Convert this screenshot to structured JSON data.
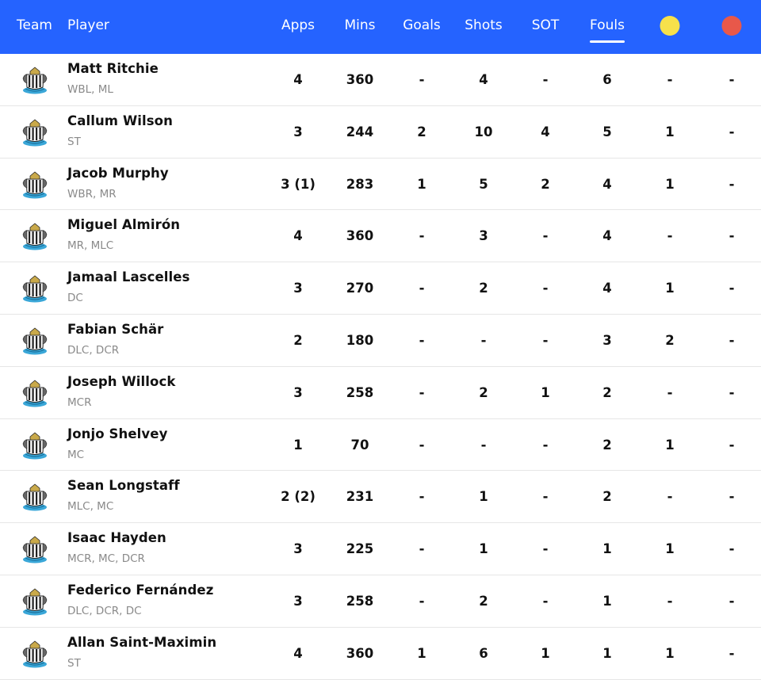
{
  "header": {
    "team": "Team",
    "player": "Player",
    "apps": "Apps",
    "mins": "Mins",
    "goals": "Goals",
    "shots": "Shots",
    "sot": "SOT",
    "fouls": "Fouls",
    "active_sort": "Fouls",
    "yellow_color": "#f7e14b",
    "red_color": "#e8584a"
  },
  "colors": {
    "header_bg": "#2563ff"
  },
  "rows": [
    {
      "name": "Matt Ritchie",
      "pos": "WBL, ML",
      "apps": "4",
      "mins": "360",
      "goals": "-",
      "shots": "4",
      "sot": "-",
      "fouls": "6",
      "yellow": "-",
      "red": "-"
    },
    {
      "name": "Callum Wilson",
      "pos": "ST",
      "apps": "3",
      "mins": "244",
      "goals": "2",
      "shots": "10",
      "sot": "4",
      "fouls": "5",
      "yellow": "1",
      "red": "-"
    },
    {
      "name": "Jacob Murphy",
      "pos": "WBR, MR",
      "apps": "3 (1)",
      "mins": "283",
      "goals": "1",
      "shots": "5",
      "sot": "2",
      "fouls": "4",
      "yellow": "1",
      "red": "-"
    },
    {
      "name": "Miguel Almirón",
      "pos": "MR, MLC",
      "apps": "4",
      "mins": "360",
      "goals": "-",
      "shots": "3",
      "sot": "-",
      "fouls": "4",
      "yellow": "-",
      "red": "-"
    },
    {
      "name": "Jamaal Lascelles",
      "pos": "DC",
      "apps": "3",
      "mins": "270",
      "goals": "-",
      "shots": "2",
      "sot": "-",
      "fouls": "4",
      "yellow": "1",
      "red": "-"
    },
    {
      "name": "Fabian Schär",
      "pos": "DLC, DCR",
      "apps": "2",
      "mins": "180",
      "goals": "-",
      "shots": "-",
      "sot": "-",
      "fouls": "3",
      "yellow": "2",
      "red": "-"
    },
    {
      "name": "Joseph Willock",
      "pos": "MCR",
      "apps": "3",
      "mins": "258",
      "goals": "-",
      "shots": "2",
      "sot": "1",
      "fouls": "2",
      "yellow": "-",
      "red": "-"
    },
    {
      "name": "Jonjo Shelvey",
      "pos": "MC",
      "apps": "1",
      "mins": "70",
      "goals": "-",
      "shots": "-",
      "sot": "-",
      "fouls": "2",
      "yellow": "1",
      "red": "-"
    },
    {
      "name": "Sean Longstaff",
      "pos": "MLC, MC",
      "apps": "2 (2)",
      "mins": "231",
      "goals": "-",
      "shots": "1",
      "sot": "-",
      "fouls": "2",
      "yellow": "-",
      "red": "-"
    },
    {
      "name": "Isaac Hayden",
      "pos": "MCR, MC, DCR",
      "apps": "3",
      "mins": "225",
      "goals": "-",
      "shots": "1",
      "sot": "-",
      "fouls": "1",
      "yellow": "1",
      "red": "-"
    },
    {
      "name": "Federico Fernández",
      "pos": "DLC, DCR, DC",
      "apps": "3",
      "mins": "258",
      "goals": "-",
      "shots": "2",
      "sot": "-",
      "fouls": "1",
      "yellow": "-",
      "red": "-"
    },
    {
      "name": "Allan Saint-Maximin",
      "pos": "ST",
      "apps": "4",
      "mins": "360",
      "goals": "1",
      "shots": "6",
      "sot": "1",
      "fouls": "1",
      "yellow": "1",
      "red": "-"
    }
  ]
}
